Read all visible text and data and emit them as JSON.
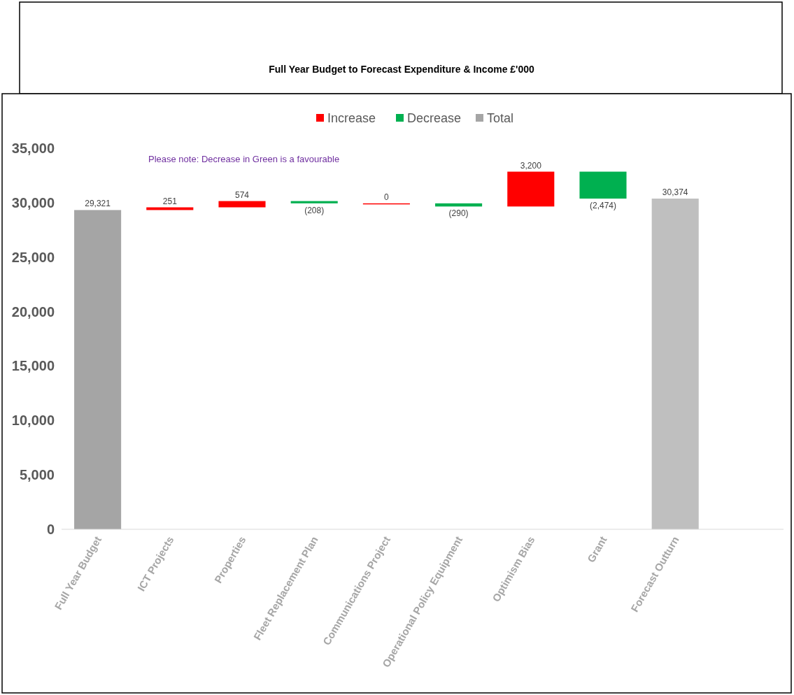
{
  "chart_data": {
    "type": "bar",
    "title": "Full Year Budget to Forecast Expenditure & Income £'000",
    "categories": [
      "Full Year Budget",
      "ICT Projects",
      "Properties",
      "Fleet Replacement Plan",
      "Communications Project",
      "Operational Policy Equipment",
      "Optimism Bias",
      "Grant",
      "Forecast Outturn",
      null
    ],
    "series": [
      {
        "name": "Increase",
        "color": "#ff0000",
        "values": [
          null,
          251,
          574,
          null,
          0,
          null,
          3200,
          null,
          null,
          null
        ],
        "base": [
          null,
          29321,
          29572,
          null,
          29938,
          null,
          29648,
          null,
          null,
          null
        ],
        "value_labels": [
          null,
          "251",
          "574",
          null,
          "0",
          null,
          "3,200",
          null,
          null,
          null
        ]
      },
      {
        "name": "Decrease",
        "color": "#00b050",
        "values": [
          null,
          null,
          null,
          -208,
          null,
          -290,
          null,
          -2474,
          null,
          null
        ],
        "base": [
          null,
          null,
          null,
          30146,
          null,
          29938,
          null,
          32848,
          null,
          null
        ],
        "value_labels": [
          null,
          null,
          null,
          "(208)",
          null,
          "(290)",
          null,
          "(2,474)",
          null,
          null
        ]
      },
      {
        "name": "Total",
        "color": "#a5a5a5",
        "colors": [
          "#a5a5a5",
          null,
          null,
          null,
          null,
          null,
          null,
          null,
          "#bfbfbf",
          null
        ],
        "values": [
          29321,
          null,
          null,
          null,
          null,
          null,
          null,
          null,
          30374,
          null
        ],
        "base": [
          0,
          null,
          null,
          null,
          null,
          null,
          null,
          null,
          0,
          null
        ],
        "value_labels": [
          "29,321",
          null,
          null,
          null,
          null,
          null,
          null,
          null,
          "30,374",
          null
        ]
      }
    ],
    "ylim": [
      0,
      35000
    ],
    "yticks": [
      {
        "value": 0,
        "label": "0"
      },
      {
        "value": 5000,
        "label": "5,000"
      },
      {
        "value": 10000,
        "label": "10,000"
      },
      {
        "value": 15000,
        "label": "15,000"
      },
      {
        "value": 20000,
        "label": "20,000"
      },
      {
        "value": 25000,
        "label": "25,000"
      },
      {
        "value": 30000,
        "label": "30,000"
      },
      {
        "value": 35000,
        "label": "35,000"
      }
    ],
    "grid": false,
    "legend": "top",
    "annotations": [
      "Please note: Decrease in Green is a favourable"
    ]
  }
}
